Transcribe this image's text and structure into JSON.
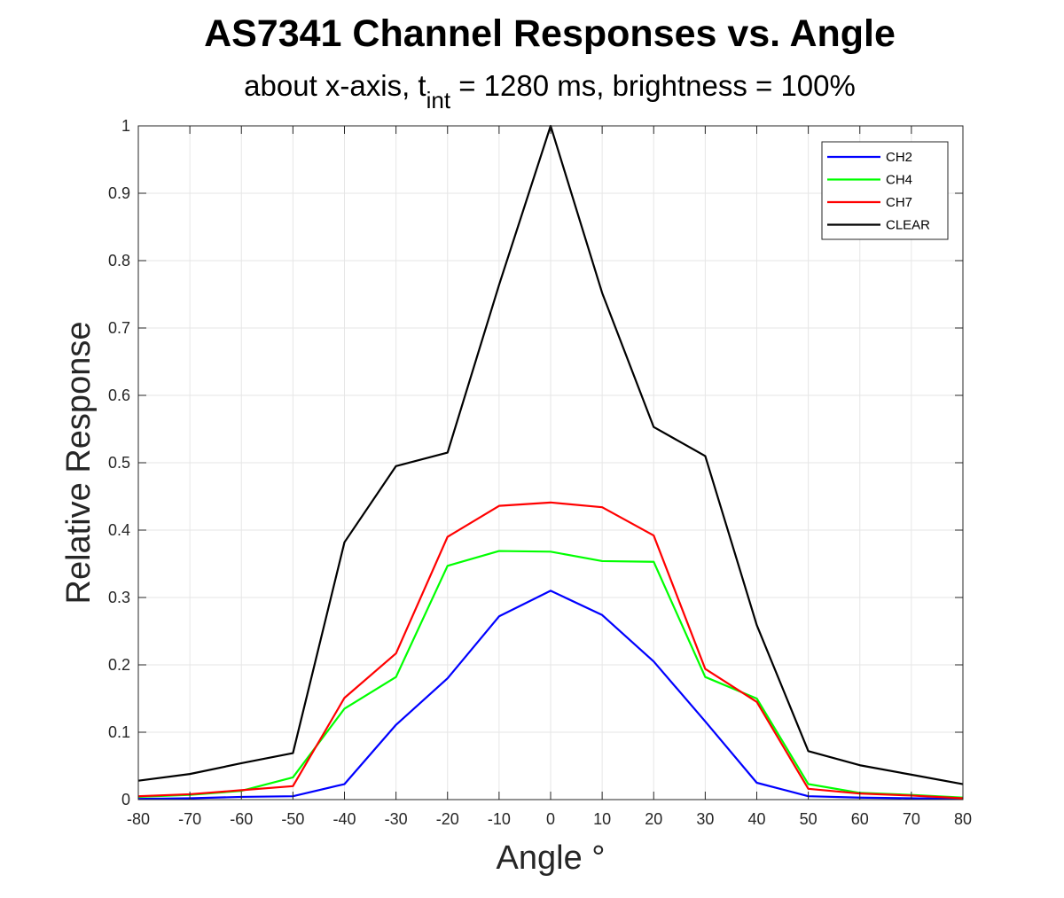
{
  "chart_data": {
    "type": "line",
    "title": "AS7341 Channel Responses vs. Angle",
    "subtitle": {
      "prefix": "about x-axis, t",
      "subscript": "int",
      "suffix": " = 1280 ms, brightness = 100%"
    },
    "xlabel": "Angle °",
    "ylabel": "Relative Response",
    "xlim": [
      -80,
      80
    ],
    "ylim": [
      0,
      1
    ],
    "xticks": [
      -80,
      -70,
      -60,
      -50,
      -40,
      -30,
      -20,
      -10,
      0,
      10,
      20,
      30,
      40,
      50,
      60,
      70,
      80
    ],
    "yticks": [
      0,
      0.1,
      0.2,
      0.3,
      0.4,
      0.5,
      0.6,
      0.7,
      0.8,
      0.9,
      1
    ],
    "grid": true,
    "legend_position": "top-right",
    "x": [
      -80,
      -70,
      -60,
      -50,
      -40,
      -30,
      -20,
      -10,
      0,
      10,
      20,
      30,
      40,
      50,
      60,
      70,
      80
    ],
    "series": [
      {
        "name": "CH2",
        "color": "#0000ff",
        "values": [
          0.001,
          0.002,
          0.004,
          0.005,
          0.023,
          0.111,
          0.18,
          0.272,
          0.31,
          0.274,
          0.205,
          0.116,
          0.025,
          0.005,
          0.003,
          0.002,
          0.001
        ]
      },
      {
        "name": "CH4",
        "color": "#00ff00",
        "values": [
          0.004,
          0.007,
          0.013,
          0.033,
          0.135,
          0.182,
          0.347,
          0.369,
          0.368,
          0.354,
          0.353,
          0.182,
          0.15,
          0.023,
          0.01,
          0.007,
          0.003
        ]
      },
      {
        "name": "CH7",
        "color": "#ff0000",
        "values": [
          0.005,
          0.008,
          0.014,
          0.02,
          0.151,
          0.217,
          0.39,
          0.436,
          0.441,
          0.434,
          0.392,
          0.194,
          0.145,
          0.016,
          0.009,
          0.006,
          0.002
        ]
      },
      {
        "name": "CLEAR",
        "color": "#000000",
        "values": [
          0.028,
          0.038,
          0.054,
          0.069,
          0.382,
          0.495,
          0.515,
          0.764,
          1.0,
          0.752,
          0.553,
          0.51,
          0.259,
          0.072,
          0.051,
          0.037,
          0.023
        ]
      }
    ]
  }
}
